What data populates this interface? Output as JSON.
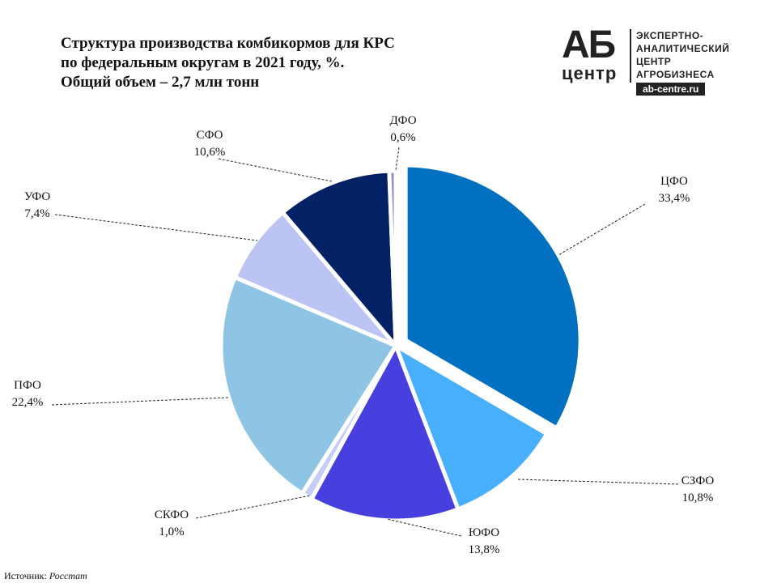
{
  "title": {
    "line1": "Структура  производства  комбикормов для КРС",
    "line2": "по федеральным округам в 2021 году, %.",
    "line3": "Общий объем – 2,7 млн тонн"
  },
  "logo": {
    "letters": "АБ",
    "word": "центр",
    "desc": [
      "ЭКСПЕРТНО-",
      "АНАЛИТИЧЕСКИЙ",
      "ЦЕНТР",
      "АГРОБИЗНЕСА"
    ],
    "site": "ab-centre.ru"
  },
  "source": {
    "label": "Источник:",
    "value": "Росстат"
  },
  "chart_data": {
    "type": "pie",
    "title": "Структура  производства  комбикормов для КРС по федеральным округам в 2021 году, %. Общий объем – 2,7 млн тонн",
    "slices": [
      {
        "label": "ЦФО",
        "value": 33.4,
        "display": "33,4%",
        "color": "#0170c1",
        "exploded": true
      },
      {
        "label": "СЗФО",
        "value": 10.8,
        "display": "10,8%",
        "color": "#47affc"
      },
      {
        "label": "ЮФО",
        "value": 13.8,
        "display": "13,8%",
        "color": "#4740de"
      },
      {
        "label": "СКФО",
        "value": 1.0,
        "display": "1,0%",
        "color": "#c4cdf6"
      },
      {
        "label": "ПФО",
        "value": 22.4,
        "display": "22,4%",
        "color": "#8ec4e4"
      },
      {
        "label": "УФО",
        "value": 7.4,
        "display": "7,4%",
        "color": "#bcc4f4"
      },
      {
        "label": "СФО",
        "value": 10.6,
        "display": "10,6%",
        "color": "#022265"
      },
      {
        "label": "ДФО",
        "value": 0.6,
        "display": "0,6%",
        "color": "#9a8cc8"
      }
    ]
  }
}
